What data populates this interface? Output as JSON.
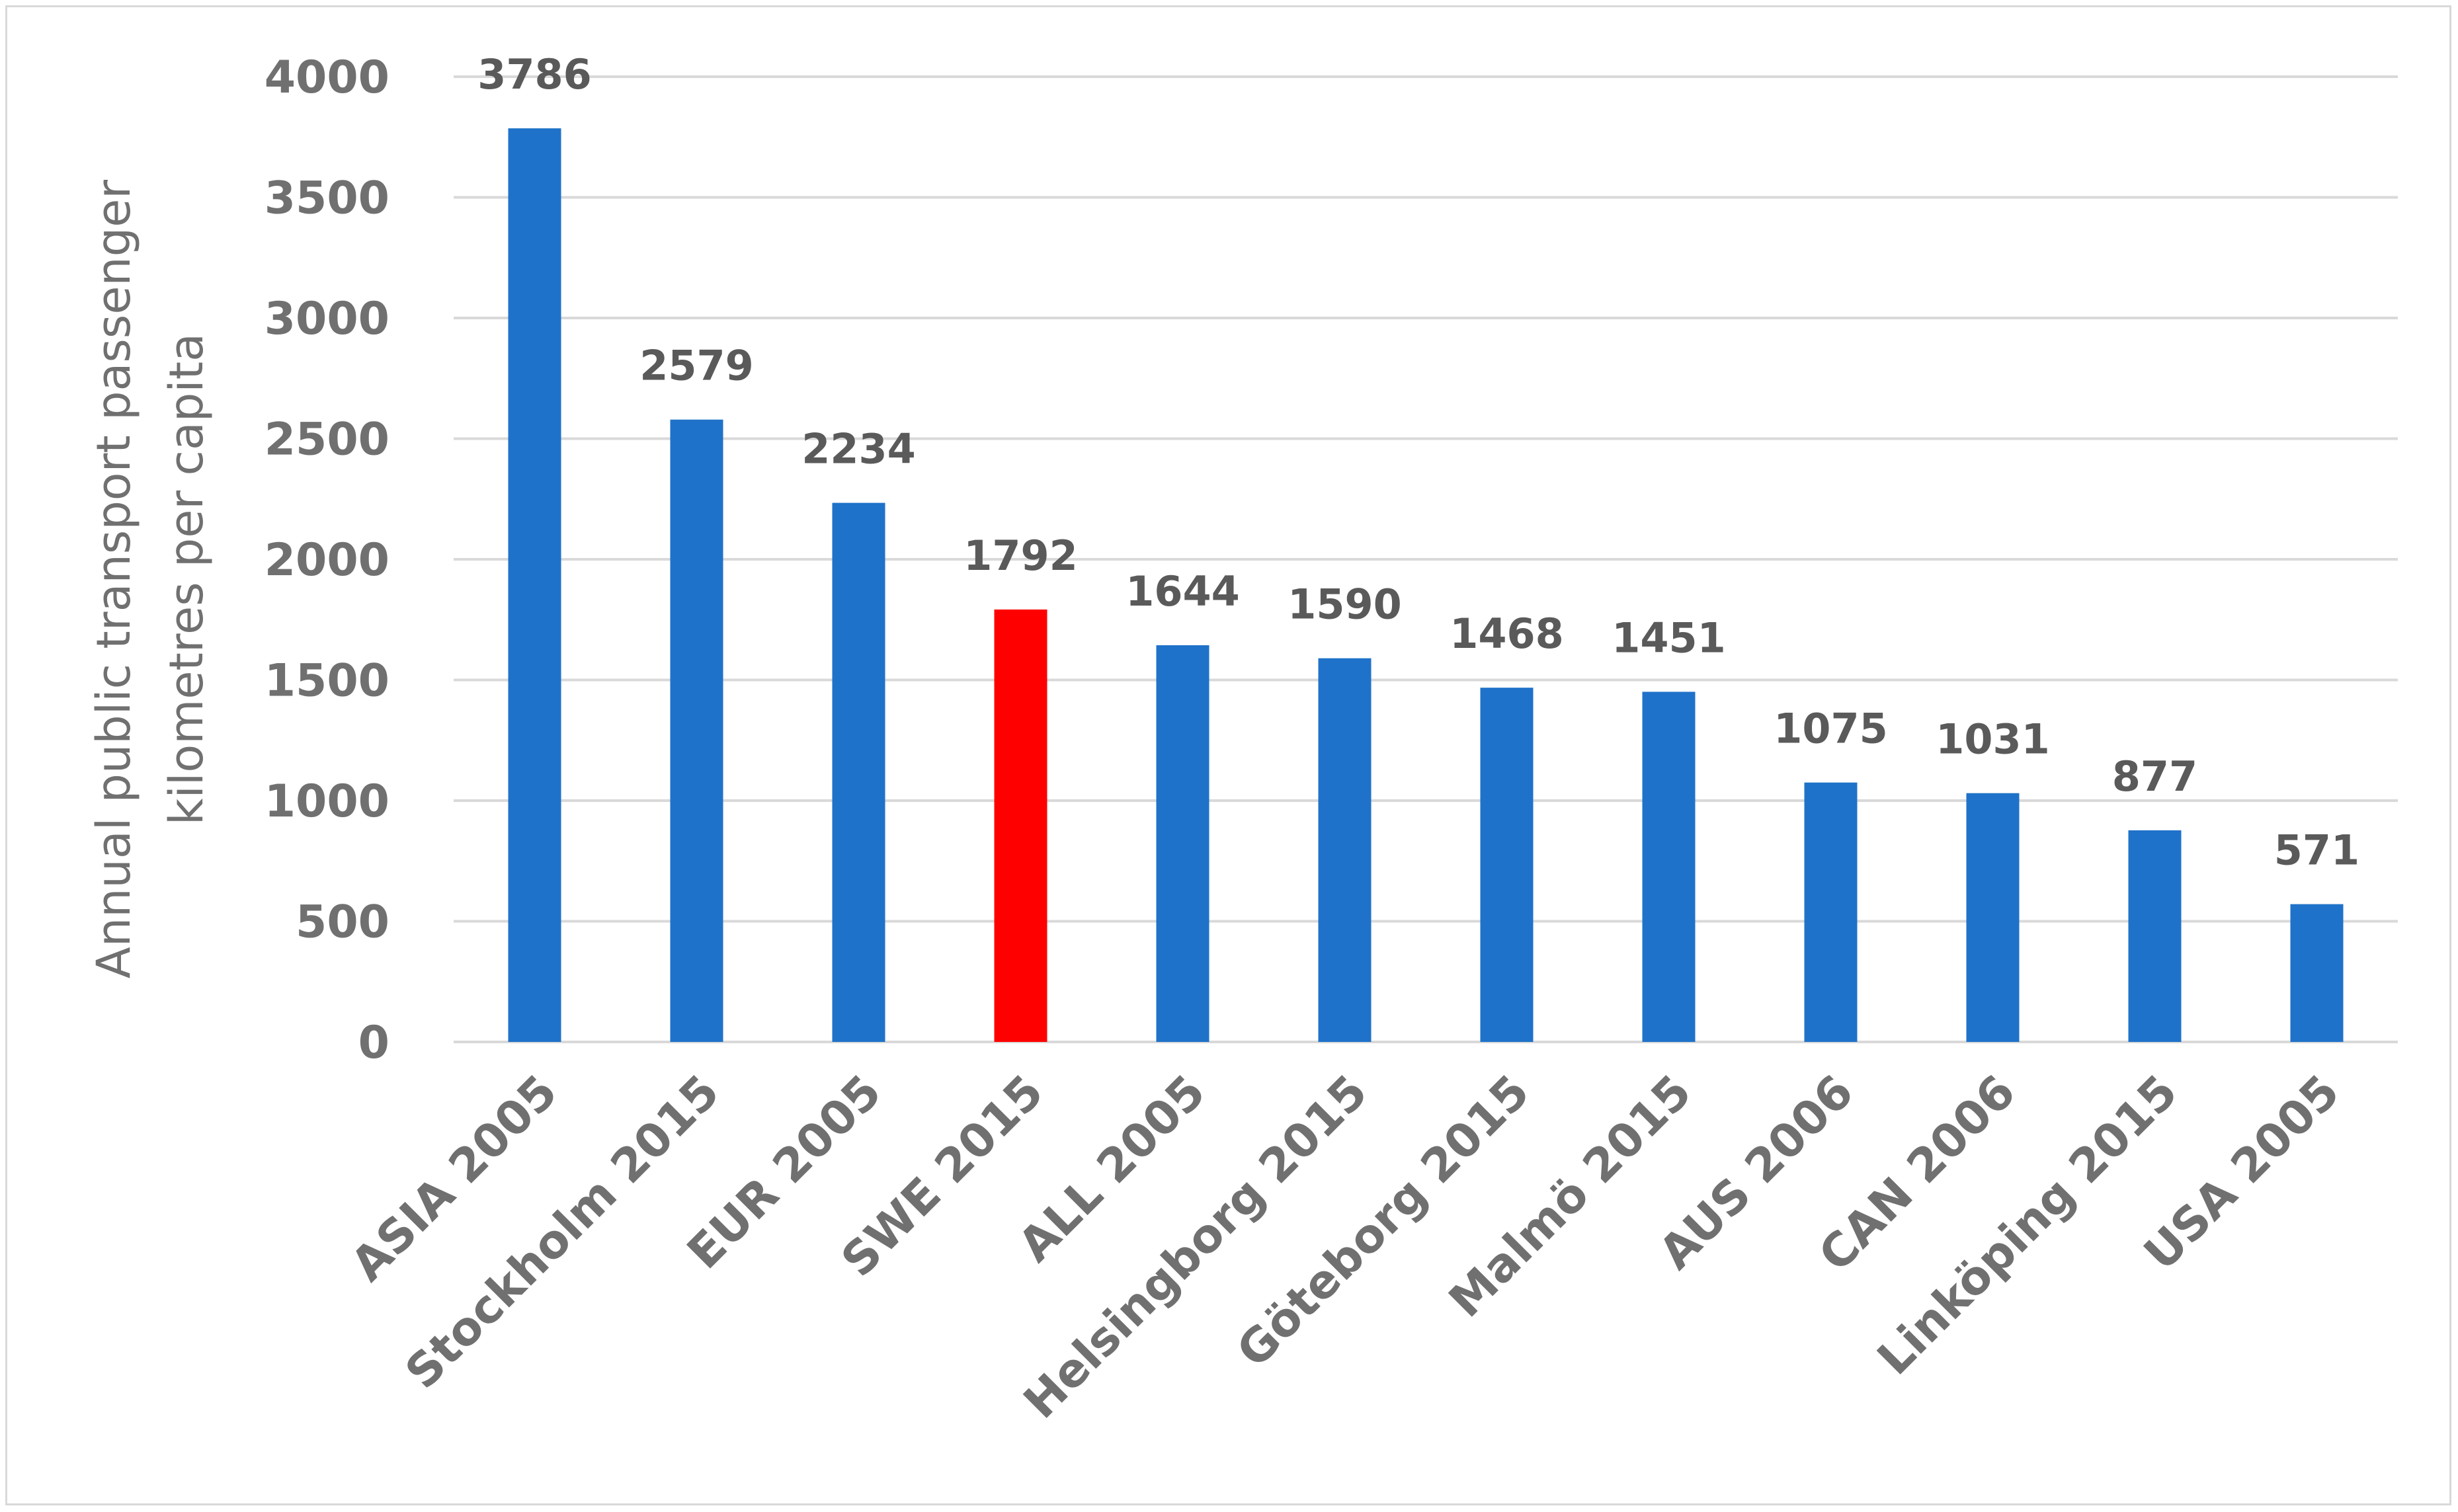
{
  "chart_data": {
    "type": "bar",
    "title": "",
    "xlabel": "",
    "ylabel": [
      "Annual public transport passenger",
      "kilometres per capita"
    ],
    "categories": [
      "ASIA 2005",
      "Stockholm 2015",
      "EUR 2005",
      "SWE 2015",
      "ALL 2005",
      "Helsingborg 2015",
      "Göteborg 2015",
      "Malmö 2015",
      "AUS 2006",
      "CAN 2006",
      "Linköping 2015",
      "USA 2005"
    ],
    "values": [
      3786,
      2579,
      2234,
      1792,
      1644,
      1590,
      1468,
      1451,
      1075,
      1031,
      877,
      571
    ],
    "data_labels": [
      "3786",
      "2579",
      "2234",
      "1792",
      "1644",
      "1590",
      "1468",
      "1451",
      "1075",
      "1031",
      "877",
      "571"
    ],
    "ylim": [
      0,
      4000
    ],
    "yticks": [
      0,
      500,
      1000,
      1500,
      2000,
      2500,
      3000,
      3500,
      4000
    ],
    "grid": true,
    "legend": "none",
    "highlight_category": "SWE 2015",
    "colors": {
      "bar": "#1f72c9",
      "highlight": "#ff0000",
      "grid": "#d9d9d9",
      "text": "#707070",
      "data_label": "#5a5a5a"
    }
  }
}
